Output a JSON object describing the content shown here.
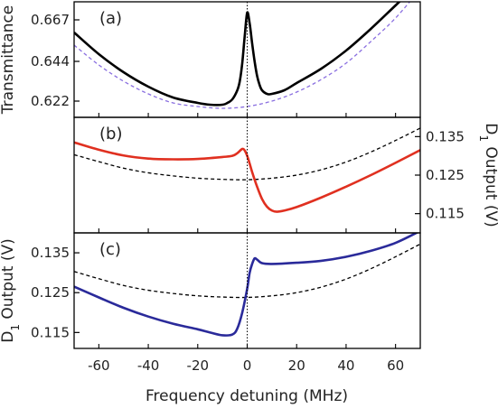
{
  "chart_data": {
    "type": "line",
    "xlabel": "Frequency detuning (MHz)",
    "xlim": [
      -70,
      70
    ],
    "xticks": [
      -60,
      -40,
      -20,
      0,
      20,
      40,
      60
    ],
    "vline_x": 0,
    "panels": [
      {
        "label": "(a)",
        "ylabel": "Transmittance",
        "ylabel_side": "left",
        "ylim": [
          0.613,
          0.677
        ],
        "yticks": [
          "0.667",
          "0.644",
          "0.622"
        ],
        "ytick_values": [
          0.667,
          0.644,
          0.622
        ],
        "series": [
          {
            "style": "solid",
            "color": "#000000",
            "x": [
              -70,
              -60,
              -50,
              -40,
              -30,
              -20,
              -15,
              -10,
              -8,
              -6,
              -4,
              -3,
              -2,
              -1,
              0,
              1,
              2,
              3,
              4,
              5,
              6,
              8,
              10,
              15,
              20,
              30,
              40,
              50,
              60,
              70
            ],
            "y": [
              0.66,
              0.648,
              0.638,
              0.63,
              0.624,
              0.621,
              0.62,
              0.62,
              0.621,
              0.623,
              0.628,
              0.633,
              0.643,
              0.658,
              0.671,
              0.665,
              0.654,
              0.644,
              0.636,
              0.631,
              0.628,
              0.626,
              0.626,
              0.628,
              0.632,
              0.64,
              0.65,
              0.662,
              0.675,
              0.688
            ]
          },
          {
            "style": "dashed",
            "color": "#8a6fe0",
            "x": [
              -70,
              -60,
              -50,
              -40,
              -30,
              -20,
              -10,
              0,
              10,
              20,
              30,
              40,
              50,
              60,
              70
            ],
            "y": [
              0.653,
              0.642,
              0.633,
              0.626,
              0.621,
              0.619,
              0.618,
              0.619,
              0.622,
              0.627,
              0.634,
              0.643,
              0.655,
              0.668,
              0.684
            ]
          }
        ]
      },
      {
        "label": "(b)",
        "ylabel": "D1 Output (V)",
        "ylabel_side": "right",
        "ylim": [
          0.11,
          0.14
        ],
        "yticks": [
          "0.135",
          "0.125",
          "0.115"
        ],
        "ytick_values": [
          0.135,
          0.125,
          0.115
        ],
        "series": [
          {
            "style": "solid",
            "color": "#e03020",
            "x": [
              -70,
              -60,
              -50,
              -40,
              -30,
              -20,
              -10,
              -6,
              -4,
              -2,
              -1,
              0,
              1,
              2,
              4,
              6,
              8,
              10,
              12,
              15,
              20,
              30,
              40,
              50,
              60,
              70
            ],
            "y": [
              0.1335,
              0.1316,
              0.1301,
              0.1293,
              0.1291,
              0.1292,
              0.1297,
              0.13,
              0.1307,
              0.1318,
              0.1314,
              0.13,
              0.128,
              0.1258,
              0.122,
              0.1188,
              0.1168,
              0.1158,
              0.1155,
              0.1158,
              0.1167,
              0.1192,
              0.122,
              0.125,
              0.1282,
              0.1315
            ]
          },
          {
            "style": "dashed",
            "color": "#000000",
            "x": [
              -70,
              -60,
              -50,
              -40,
              -30,
              -20,
              -10,
              0,
              10,
              20,
              30,
              40,
              50,
              60,
              70
            ],
            "y": [
              0.1303,
              0.1285,
              0.1268,
              0.1256,
              0.1248,
              0.1242,
              0.1239,
              0.1238,
              0.1242,
              0.125,
              0.1264,
              0.1284,
              0.131,
              0.134,
              0.1372
            ]
          }
        ]
      },
      {
        "label": "(c)",
        "ylabel": "D1 Output (V)",
        "ylabel_side": "left",
        "ylim": [
          0.111,
          0.14
        ],
        "yticks": [
          "0.135",
          "0.125",
          "0.115"
        ],
        "ytick_values": [
          0.135,
          0.125,
          0.115
        ],
        "series": [
          {
            "style": "solid",
            "color": "#2a2a9a",
            "x": [
              -70,
              -60,
              -50,
              -40,
              -30,
              -20,
              -15,
              -10,
              -6,
              -4,
              -2,
              0,
              1,
              2,
              3,
              4,
              6,
              10,
              20,
              30,
              40,
              50,
              60,
              70
            ],
            "y": [
              0.1265,
              0.1238,
              0.1212,
              0.119,
              0.1172,
              0.1158,
              0.115,
              0.1143,
              0.1145,
              0.116,
              0.12,
              0.126,
              0.13,
              0.1322,
              0.1336,
              0.1333,
              0.1324,
              0.1322,
              0.1325,
              0.133,
              0.134,
              0.1355,
              0.1375,
              0.1405
            ]
          },
          {
            "style": "dashed",
            "color": "#000000",
            "x": [
              -70,
              -60,
              -50,
              -40,
              -30,
              -20,
              -10,
              0,
              10,
              20,
              30,
              40,
              50,
              60,
              70
            ],
            "y": [
              0.1303,
              0.1285,
              0.1268,
              0.1256,
              0.1248,
              0.1242,
              0.1239,
              0.1238,
              0.1242,
              0.125,
              0.1264,
              0.1284,
              0.131,
              0.134,
              0.1372
            ]
          }
        ]
      }
    ]
  }
}
